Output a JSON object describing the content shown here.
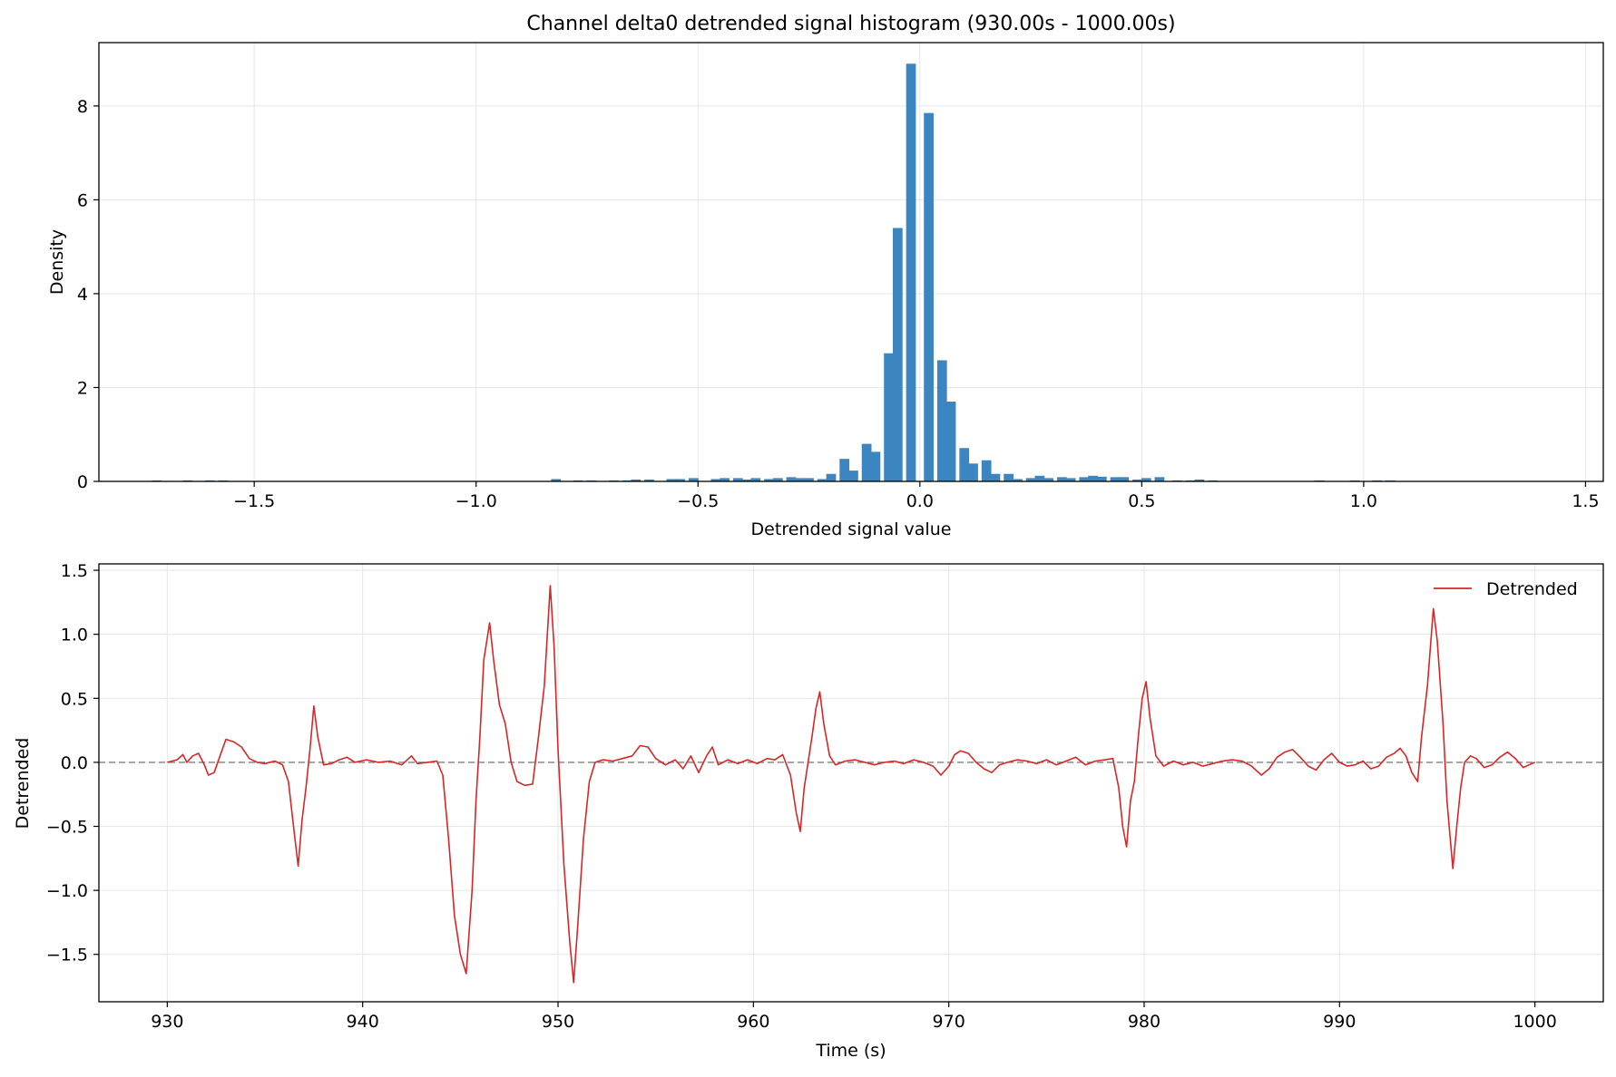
{
  "colors": {
    "histogram_bar": "#3b86c0",
    "signal_line": "#d62728",
    "zero_line": "#808080",
    "grid": "#e6e6e6",
    "axes": "#000000"
  },
  "chart_data": [
    {
      "type": "bar",
      "title": "Channel delta0 detrended signal histogram (930.00s - 1000.00s)",
      "xlabel": "Detrended signal value",
      "ylabel": "Density",
      "xlim": [
        -1.85,
        1.54
      ],
      "ylim": [
        0,
        9.35
      ],
      "xticks": [
        -1.5,
        -1.0,
        -0.5,
        0.0,
        0.5,
        1.0,
        1.5
      ],
      "xtick_labels": [
        "−1.5",
        "−1.0",
        "−0.5",
        "0.0",
        "0.5",
        "1.0",
        "1.5"
      ],
      "yticks": [
        0,
        2,
        4,
        6,
        8
      ],
      "ytick_labels": [
        "0",
        "2",
        "4",
        "6",
        "8"
      ],
      "grid": true,
      "bin_width": 0.0244,
      "bins": [
        {
          "x": -1.72,
          "density": 0.02
        },
        {
          "x": -1.65,
          "density": 0.02
        },
        {
          "x": -1.6,
          "density": 0.02
        },
        {
          "x": -1.57,
          "density": 0.02
        },
        {
          "x": -0.82,
          "density": 0.05
        },
        {
          "x": -0.77,
          "density": 0.02
        },
        {
          "x": -0.74,
          "density": 0.02
        },
        {
          "x": -0.69,
          "density": 0.02
        },
        {
          "x": -0.66,
          "density": 0.02
        },
        {
          "x": -0.64,
          "density": 0.04
        },
        {
          "x": -0.61,
          "density": 0.04
        },
        {
          "x": -0.56,
          "density": 0.05
        },
        {
          "x": -0.54,
          "density": 0.05
        },
        {
          "x": -0.51,
          "density": 0.07
        },
        {
          "x": -0.46,
          "density": 0.05
        },
        {
          "x": -0.44,
          "density": 0.07
        },
        {
          "x": -0.41,
          "density": 0.07
        },
        {
          "x": -0.39,
          "density": 0.04
        },
        {
          "x": -0.37,
          "density": 0.07
        },
        {
          "x": -0.34,
          "density": 0.05
        },
        {
          "x": -0.32,
          "density": 0.07
        },
        {
          "x": -0.29,
          "density": 0.09
        },
        {
          "x": -0.27,
          "density": 0.07
        },
        {
          "x": -0.25,
          "density": 0.07
        },
        {
          "x": -0.22,
          "density": 0.05
        },
        {
          "x": -0.2,
          "density": 0.16
        },
        {
          "x": -0.17,
          "density": 0.48
        },
        {
          "x": -0.15,
          "density": 0.23
        },
        {
          "x": -0.12,
          "density": 0.8
        },
        {
          "x": -0.1,
          "density": 0.63
        },
        {
          "x": -0.07,
          "density": 2.73
        },
        {
          "x": -0.05,
          "density": 5.4
        },
        {
          "x": -0.02,
          "density": 8.9
        },
        {
          "x": 0.02,
          "density": 7.85
        },
        {
          "x": 0.05,
          "density": 2.58
        },
        {
          "x": 0.07,
          "density": 1.7
        },
        {
          "x": 0.1,
          "density": 0.71
        },
        {
          "x": 0.12,
          "density": 0.38
        },
        {
          "x": 0.15,
          "density": 0.45
        },
        {
          "x": 0.17,
          "density": 0.16
        },
        {
          "x": 0.2,
          "density": 0.16
        },
        {
          "x": 0.22,
          "density": 0.05
        },
        {
          "x": 0.25,
          "density": 0.07
        },
        {
          "x": 0.27,
          "density": 0.12
        },
        {
          "x": 0.29,
          "density": 0.07
        },
        {
          "x": 0.32,
          "density": 0.09
        },
        {
          "x": 0.34,
          "density": 0.07
        },
        {
          "x": 0.37,
          "density": 0.09
        },
        {
          "x": 0.39,
          "density": 0.12
        },
        {
          "x": 0.41,
          "density": 0.1
        },
        {
          "x": 0.44,
          "density": 0.09
        },
        {
          "x": 0.46,
          "density": 0.09
        },
        {
          "x": 0.49,
          "density": 0.04
        },
        {
          "x": 0.51,
          "density": 0.07
        },
        {
          "x": 0.54,
          "density": 0.09
        },
        {
          "x": 0.58,
          "density": 0.02
        },
        {
          "x": 0.61,
          "density": 0.02
        },
        {
          "x": 0.63,
          "density": 0.04
        },
        {
          "x": 0.66,
          "density": 0.02
        },
        {
          "x": 0.9,
          "density": 0.02
        },
        {
          "x": 0.98,
          "density": 0.02
        },
        {
          "x": 1.03,
          "density": 0.02
        },
        {
          "x": 1.06,
          "density": 0.02
        }
      ]
    },
    {
      "type": "line",
      "xlabel": "Time (s)",
      "ylabel": "Detrended",
      "xlim": [
        926.5,
        1003.5
      ],
      "ylim": [
        -1.87,
        1.55
      ],
      "xticks": [
        930,
        940,
        950,
        960,
        970,
        980,
        990,
        1000
      ],
      "xtick_labels": [
        "930",
        "940",
        "950",
        "960",
        "970",
        "980",
        "990",
        "1000"
      ],
      "yticks": [
        -1.5,
        -1.0,
        -0.5,
        0.0,
        0.5,
        1.0,
        1.5
      ],
      "ytick_labels": [
        "−1.5",
        "−1.0",
        "−0.5",
        "0.0",
        "0.5",
        "1.0",
        "1.5"
      ],
      "grid": true,
      "reference_line": {
        "y": 0,
        "style": "dashed"
      },
      "legend": {
        "position": "top-right",
        "entries": [
          "Detrended"
        ]
      },
      "series": [
        {
          "name": "Detrended",
          "points": [
            [
              930.0,
              0.0
            ],
            [
              930.5,
              0.02
            ],
            [
              930.8,
              0.06
            ],
            [
              931.0,
              0.0
            ],
            [
              931.3,
              0.05
            ],
            [
              931.6,
              0.07
            ],
            [
              931.9,
              -0.02
            ],
            [
              932.1,
              -0.1
            ],
            [
              932.4,
              -0.08
            ],
            [
              932.7,
              0.05
            ],
            [
              933.0,
              0.18
            ],
            [
              933.4,
              0.16
            ],
            [
              933.8,
              0.12
            ],
            [
              934.2,
              0.03
            ],
            [
              934.6,
              0.0
            ],
            [
              935.0,
              -0.01
            ],
            [
              935.5,
              0.01
            ],
            [
              935.9,
              -0.02
            ],
            [
              936.2,
              -0.15
            ],
            [
              936.5,
              -0.55
            ],
            [
              936.7,
              -0.81
            ],
            [
              936.9,
              -0.45
            ],
            [
              937.1,
              -0.2
            ],
            [
              937.3,
              0.1
            ],
            [
              937.5,
              0.44
            ],
            [
              937.7,
              0.2
            ],
            [
              938.0,
              -0.02
            ],
            [
              938.4,
              -0.01
            ],
            [
              938.8,
              0.02
            ],
            [
              939.2,
              0.04
            ],
            [
              939.6,
              0.0
            ],
            [
              940.2,
              0.02
            ],
            [
              940.8,
              0.0
            ],
            [
              941.4,
              0.01
            ],
            [
              942.0,
              -0.02
            ],
            [
              942.5,
              0.05
            ],
            [
              942.8,
              -0.01
            ],
            [
              943.3,
              0.0
            ],
            [
              943.8,
              0.01
            ],
            [
              944.1,
              -0.1
            ],
            [
              944.4,
              -0.6
            ],
            [
              944.7,
              -1.2
            ],
            [
              945.0,
              -1.5
            ],
            [
              945.3,
              -1.65
            ],
            [
              945.6,
              -1.0
            ],
            [
              945.8,
              -0.3
            ],
            [
              946.0,
              0.2
            ],
            [
              946.2,
              0.8
            ],
            [
              946.5,
              1.09
            ],
            [
              946.7,
              0.8
            ],
            [
              947.0,
              0.45
            ],
            [
              947.3,
              0.3
            ],
            [
              947.6,
              0.0
            ],
            [
              947.9,
              -0.15
            ],
            [
              948.3,
              -0.18
            ],
            [
              948.7,
              -0.17
            ],
            [
              949.0,
              0.2
            ],
            [
              949.3,
              0.6
            ],
            [
              949.6,
              1.38
            ],
            [
              949.8,
              0.9
            ],
            [
              950.0,
              0.1
            ],
            [
              950.3,
              -0.8
            ],
            [
              950.6,
              -1.4
            ],
            [
              950.8,
              -1.72
            ],
            [
              951.0,
              -1.3
            ],
            [
              951.3,
              -0.6
            ],
            [
              951.6,
              -0.15
            ],
            [
              951.9,
              0.0
            ],
            [
              952.3,
              0.02
            ],
            [
              952.8,
              0.01
            ],
            [
              953.3,
              0.03
            ],
            [
              953.8,
              0.05
            ],
            [
              954.2,
              0.13
            ],
            [
              954.6,
              0.12
            ],
            [
              955.0,
              0.03
            ],
            [
              955.5,
              -0.02
            ],
            [
              956.0,
              0.02
            ],
            [
              956.4,
              -0.05
            ],
            [
              956.8,
              0.05
            ],
            [
              957.2,
              -0.08
            ],
            [
              957.6,
              0.05
            ],
            [
              957.9,
              0.12
            ],
            [
              958.2,
              -0.02
            ],
            [
              958.7,
              0.02
            ],
            [
              959.2,
              -0.01
            ],
            [
              959.7,
              0.02
            ],
            [
              960.2,
              -0.01
            ],
            [
              960.7,
              0.03
            ],
            [
              961.1,
              0.02
            ],
            [
              961.5,
              0.06
            ],
            [
              961.9,
              -0.1
            ],
            [
              962.2,
              -0.4
            ],
            [
              962.4,
              -0.54
            ],
            [
              962.6,
              -0.2
            ],
            [
              962.8,
              0.0
            ],
            [
              963.0,
              0.2
            ],
            [
              963.2,
              0.42
            ],
            [
              963.4,
              0.55
            ],
            [
              963.6,
              0.3
            ],
            [
              963.9,
              0.05
            ],
            [
              964.2,
              -0.02
            ],
            [
              964.7,
              0.01
            ],
            [
              965.2,
              0.02
            ],
            [
              965.7,
              0.0
            ],
            [
              966.2,
              -0.02
            ],
            [
              966.7,
              0.0
            ],
            [
              967.2,
              0.01
            ],
            [
              967.7,
              -0.01
            ],
            [
              968.2,
              0.02
            ],
            [
              968.7,
              0.0
            ],
            [
              969.2,
              -0.03
            ],
            [
              969.6,
              -0.1
            ],
            [
              970.0,
              -0.03
            ],
            [
              970.3,
              0.06
            ],
            [
              970.6,
              0.09
            ],
            [
              971.0,
              0.07
            ],
            [
              971.4,
              0.0
            ],
            [
              971.8,
              -0.05
            ],
            [
              972.2,
              -0.08
            ],
            [
              972.6,
              -0.02
            ],
            [
              973.0,
              0.0
            ],
            [
              973.5,
              0.02
            ],
            [
              974.0,
              0.01
            ],
            [
              974.5,
              -0.01
            ],
            [
              975.0,
              0.02
            ],
            [
              975.5,
              -0.02
            ],
            [
              976.0,
              0.01
            ],
            [
              976.5,
              0.04
            ],
            [
              977.0,
              -0.02
            ],
            [
              977.5,
              0.01
            ],
            [
              978.0,
              0.02
            ],
            [
              978.4,
              0.03
            ],
            [
              978.7,
              -0.2
            ],
            [
              978.9,
              -0.5
            ],
            [
              979.1,
              -0.66
            ],
            [
              979.3,
              -0.3
            ],
            [
              979.5,
              -0.15
            ],
            [
              979.7,
              0.2
            ],
            [
              979.9,
              0.5
            ],
            [
              980.1,
              0.63
            ],
            [
              980.3,
              0.35
            ],
            [
              980.6,
              0.05
            ],
            [
              981.0,
              -0.03
            ],
            [
              981.5,
              0.01
            ],
            [
              982.0,
              -0.02
            ],
            [
              982.5,
              0.0
            ],
            [
              983.0,
              -0.03
            ],
            [
              983.5,
              -0.01
            ],
            [
              984.0,
              0.01
            ],
            [
              984.5,
              0.02
            ],
            [
              985.0,
              0.01
            ],
            [
              985.5,
              -0.03
            ],
            [
              986.0,
              -0.1
            ],
            [
              986.4,
              -0.05
            ],
            [
              986.8,
              0.04
            ],
            [
              987.2,
              0.08
            ],
            [
              987.6,
              0.1
            ],
            [
              988.0,
              0.04
            ],
            [
              988.4,
              -0.03
            ],
            [
              988.8,
              -0.06
            ],
            [
              989.2,
              0.02
            ],
            [
              989.6,
              0.07
            ],
            [
              990.0,
              0.0
            ],
            [
              990.4,
              -0.03
            ],
            [
              990.8,
              -0.02
            ],
            [
              991.2,
              0.01
            ],
            [
              991.6,
              -0.05
            ],
            [
              992.0,
              -0.03
            ],
            [
              992.4,
              0.04
            ],
            [
              992.8,
              0.07
            ],
            [
              993.1,
              0.11
            ],
            [
              993.4,
              0.05
            ],
            [
              993.7,
              -0.08
            ],
            [
              994.0,
              -0.15
            ],
            [
              994.2,
              0.2
            ],
            [
              994.5,
              0.6
            ],
            [
              994.8,
              1.2
            ],
            [
              995.0,
              0.95
            ],
            [
              995.3,
              0.3
            ],
            [
              995.5,
              -0.3
            ],
            [
              995.8,
              -0.83
            ],
            [
              996.0,
              -0.5
            ],
            [
              996.2,
              -0.2
            ],
            [
              996.4,
              0.0
            ],
            [
              996.7,
              0.05
            ],
            [
              997.0,
              0.03
            ],
            [
              997.4,
              -0.04
            ],
            [
              997.8,
              -0.02
            ],
            [
              998.2,
              0.04
            ],
            [
              998.6,
              0.08
            ],
            [
              999.0,
              0.03
            ],
            [
              999.4,
              -0.04
            ],
            [
              999.7,
              -0.02
            ],
            [
              1000.0,
              0.0
            ]
          ]
        }
      ]
    }
  ]
}
